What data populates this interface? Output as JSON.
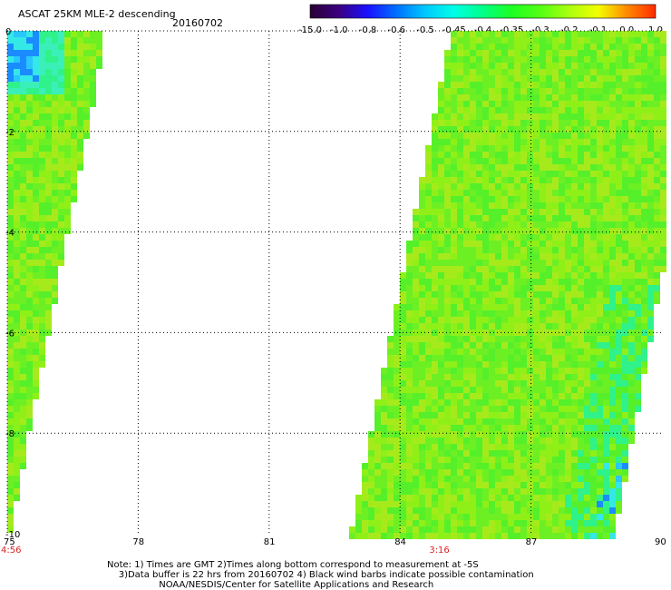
{
  "header": {
    "title": "ASCAT 25KM MLE-2 descending",
    "date": "20160702"
  },
  "colorbar": {
    "labels": [
      "-15.0",
      "-1.0",
      "-0.8",
      "-0.6",
      "-0.5",
      "-0.45",
      "-0.4",
      "-0.35",
      "-0.3",
      "-0.2",
      "-0.1",
      "0.0",
      "1.0"
    ],
    "colors": [
      "#2a0033",
      "#3a0080",
      "#1a10ff",
      "#0070ff",
      "#00c8ff",
      "#00ffe6",
      "#00ff88",
      "#1cff22",
      "#55ff14",
      "#aaff10",
      "#f2ff00",
      "#ff8a00",
      "#ff2a00"
    ]
  },
  "axes": {
    "x_ticks": [
      "75",
      "78",
      "81",
      "84",
      "87",
      "90"
    ],
    "y_ticks": [
      "0",
      "-2",
      "-4",
      "-6",
      "-8",
      "-10"
    ],
    "time_labels": [
      {
        "text": "4:56",
        "lon": "75"
      },
      {
        "text": "3:16",
        "lon": "85"
      }
    ]
  },
  "note": {
    "line1": "Note: 1) Times are GMT 2)Times along bottom correspond to measurement at -5S",
    "line2": "3)Data buffer is 22 hrs from 20160702 4) Black wind barbs indicate possible contamination",
    "line3": "NOAA/NESDIS/Center for Satellite Applications and Research"
  },
  "map_data": {
    "lon_range": [
      75,
      90
    ],
    "lat_range": [
      -10,
      0
    ],
    "grid": true,
    "swaths": [
      {
        "name": "west swath",
        "time": "4:56"
      },
      {
        "name": "east swath",
        "time": "3:16"
      }
    ]
  }
}
